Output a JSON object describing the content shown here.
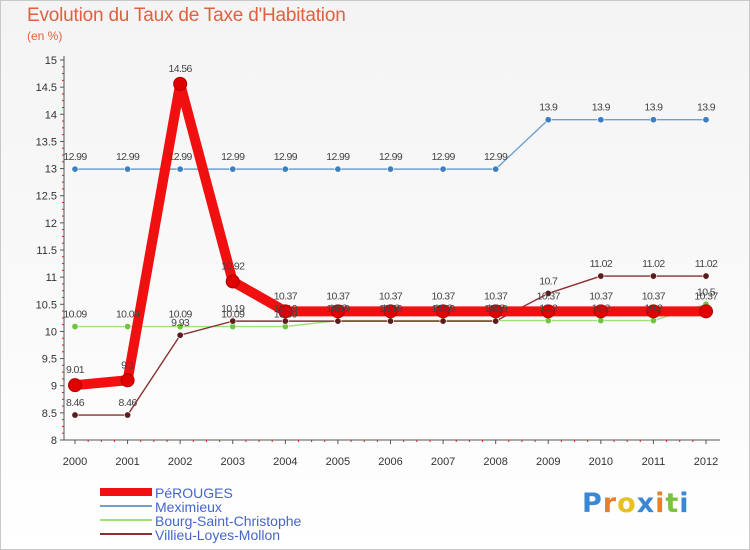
{
  "title": "Evolution du Taux de Taxe d'Habitation",
  "unit_label": "(en %)",
  "logo": {
    "text": "Proxiti",
    "letters": [
      {
        "ch": "P",
        "color": "#3a88d4"
      },
      {
        "ch": "r",
        "color": "#e8802a"
      },
      {
        "ch": "o",
        "color": "#e8c020"
      },
      {
        "ch": "x",
        "color": "#3a88d4"
      },
      {
        "ch": "i",
        "color": "#e8802a"
      },
      {
        "ch": "t",
        "color": "#7cc242"
      },
      {
        "ch": "i",
        "color": "#3a88d4"
      }
    ]
  },
  "chart_data": {
    "type": "line",
    "title": "Evolution du Taux de Taxe d'Habitation",
    "ylabel": "(en %)",
    "xlabel": "",
    "grid": false,
    "ylim": [
      8,
      15
    ],
    "yticks": [
      "8",
      "8.5",
      "9",
      "9.5",
      "10",
      "10.5",
      "11",
      "11.5",
      "12",
      "12.5",
      "13",
      "13.5",
      "14",
      "14.5",
      "15"
    ],
    "categories": [
      "2000",
      "2001",
      "2002",
      "2003",
      "2004",
      "2005",
      "2006",
      "2007",
      "2008",
      "2009",
      "2010",
      "2011",
      "2012"
    ],
    "series": [
      {
        "name": "Meximieux",
        "color": "#6fa0cf",
        "marker": "#3d7fc0",
        "values": [
          12.99,
          12.99,
          12.99,
          12.99,
          12.99,
          12.99,
          12.99,
          12.99,
          12.99,
          13.9,
          13.9,
          13.9,
          13.9
        ],
        "labels": [
          "12.99",
          "12.99",
          "12.99",
          "12.99",
          "12.99",
          "12.99",
          "12.99",
          "12.99",
          "12.99",
          "13.9",
          "13.9",
          "13.9",
          "13.9"
        ]
      },
      {
        "name": "Bourg-Saint-Christophe",
        "color": "#9ee07a",
        "marker": "#6cc640",
        "values": [
          10.09,
          10.09,
          10.09,
          10.09,
          10.09,
          10.2,
          10.2,
          10.2,
          10.2,
          10.2,
          10.2,
          10.2,
          10.5
        ],
        "labels": [
          "10.09",
          "10.09",
          "10.09",
          "10.09",
          "10.09",
          "10.2",
          "10.2",
          "10.2",
          "10.2",
          "10.2",
          "10.2",
          "10.2",
          "10.5"
        ]
      },
      {
        "name": "Villieu-Loyes-Mollon",
        "color": "#8a3030",
        "marker": "#5a1c1c",
        "values": [
          8.46,
          8.46,
          9.93,
          10.19,
          10.19,
          10.19,
          10.19,
          10.19,
          10.19,
          10.7,
          11.02,
          11.02,
          11.02
        ],
        "labels": [
          "8.46",
          "8.46",
          "9.93",
          "10.19",
          "10.19",
          "10.19",
          "10.19",
          "10.19",
          "10.19",
          "10.7",
          "11.02",
          "11.02",
          "11.02"
        ]
      },
      {
        "name": "PéROUGES",
        "color": "#f01010",
        "marker": "#e00000",
        "values": [
          9.01,
          9.1,
          14.56,
          10.92,
          10.37,
          10.37,
          10.37,
          10.37,
          10.37,
          10.37,
          10.37,
          10.37,
          10.37
        ],
        "labels": [
          "9.01",
          "9.1",
          "14.56",
          "10.92",
          "10.37",
          "10.37",
          "10.37",
          "10.37",
          "10.37",
          "10.37",
          "10.37",
          "10.37",
          "10.37"
        ]
      }
    ],
    "legend": [
      "PéROUGES",
      "Meximieux",
      "Bourg-Saint-Christophe",
      "Villieu-Loyes-Mollon"
    ],
    "legend_placement": "bottom-left"
  }
}
